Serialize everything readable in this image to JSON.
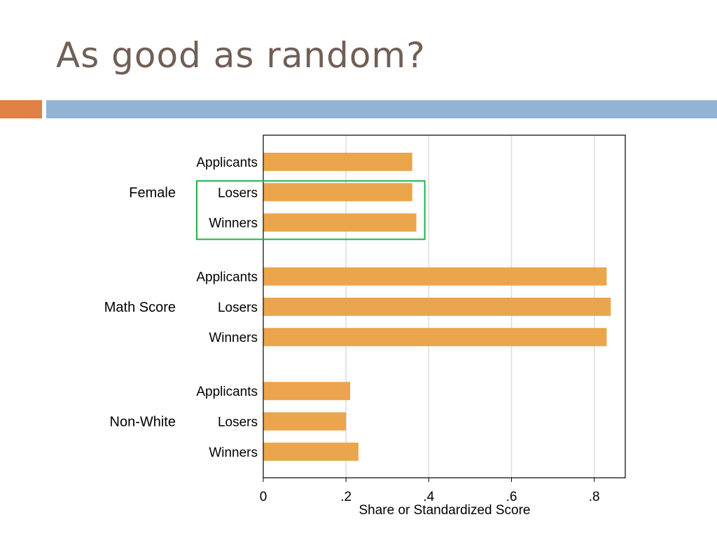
{
  "slide": {
    "title": "As good as random?",
    "colors": {
      "title": "#6f5f56",
      "accent_left": "#df8045",
      "accent_bar": "#92b4d4"
    }
  },
  "chart_data": {
    "type": "bar",
    "orientation": "horizontal",
    "groups": [
      {
        "name": "Female",
        "bars": [
          {
            "label": "Applicants",
            "value": 0.36
          },
          {
            "label": "Losers",
            "value": 0.36
          },
          {
            "label": "Winners",
            "value": 0.37
          }
        ]
      },
      {
        "name": "Math Score",
        "bars": [
          {
            "label": "Applicants",
            "value": 0.83
          },
          {
            "label": "Losers",
            "value": 0.84
          },
          {
            "label": "Winners",
            "value": 0.83
          }
        ]
      },
      {
        "name": "Non-White",
        "bars": [
          {
            "label": "Applicants",
            "value": 0.21
          },
          {
            "label": "Losers",
            "value": 0.2
          },
          {
            "label": "Winners",
            "value": 0.23
          }
        ]
      }
    ],
    "xlabel": "Share or Standardized Score",
    "xlim": [
      0,
      0.875
    ],
    "xticks": [
      0,
      0.2,
      0.4,
      0.6,
      0.8
    ],
    "xtick_labels": [
      "0",
      ".2",
      ".4",
      ".6",
      ".8"
    ],
    "grid": "vertical",
    "highlight": {
      "group": "Female",
      "color": "#22b04a"
    },
    "bar_color": "#eaa54d"
  }
}
